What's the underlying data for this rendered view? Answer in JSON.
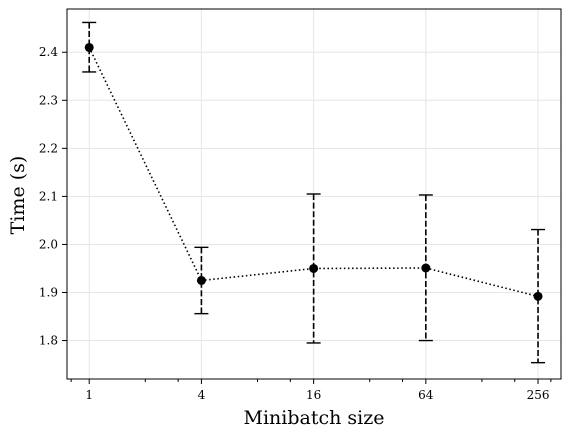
{
  "chart_data": {
    "type": "line",
    "xlabel": "Minibatch size",
    "ylabel": "Time (s)",
    "x_scale": "log2",
    "x": [
      1,
      4,
      16,
      64,
      256
    ],
    "x_tick_labels": [
      "1",
      "4",
      "16",
      "64",
      "256"
    ],
    "xlim": [
      0.76,
      340
    ],
    "ylim": [
      1.72,
      2.49
    ],
    "y_ticks": [
      1.8,
      1.9,
      2.0,
      2.1,
      2.2,
      2.3,
      2.4
    ],
    "y_tick_labels": [
      "1.8",
      "1.9",
      "2.0",
      "2.1",
      "2.2",
      "2.3",
      "2.4"
    ],
    "grid": true,
    "series": [
      {
        "values": [
          2.41,
          1.925,
          1.95,
          1.951,
          1.892
        ],
        "error_low": [
          2.359,
          1.856,
          1.795,
          1.8,
          1.754
        ],
        "error_high": [
          2.462,
          1.994,
          2.105,
          2.103,
          2.031
        ],
        "color": "#000000",
        "line_style": "dotted",
        "error_style": "dashed",
        "marker": "circle"
      }
    ]
  }
}
